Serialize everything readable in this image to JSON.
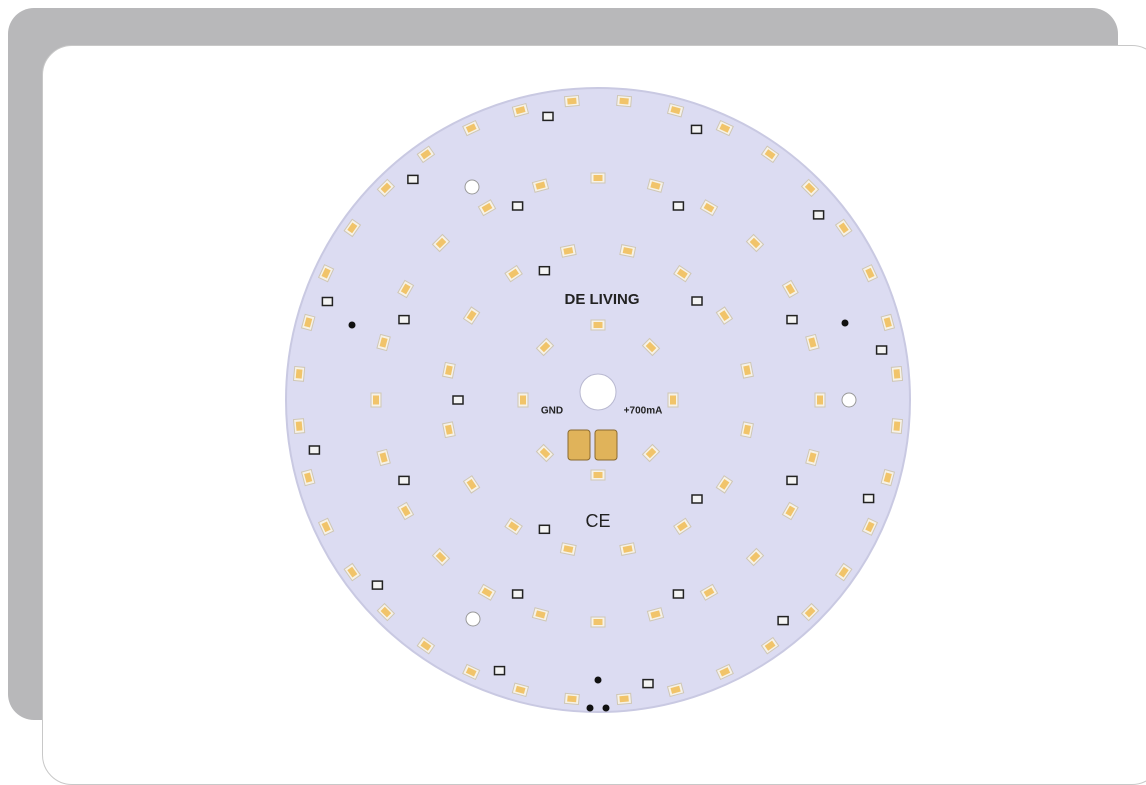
{
  "board": {
    "logo": "DE LIVING",
    "ground_label": "GND",
    "current_label": "+700mA",
    "certification": "CE"
  }
}
